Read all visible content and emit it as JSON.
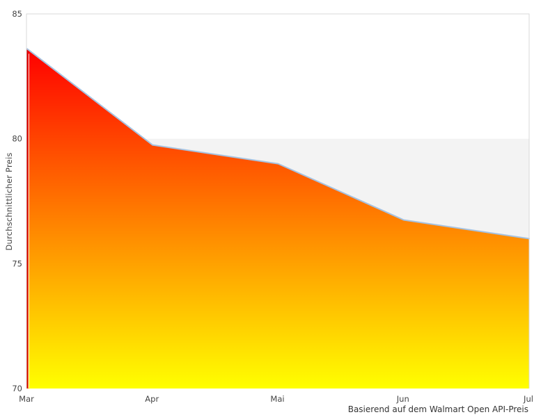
{
  "chart_data": {
    "type": "area",
    "categories": [
      "Mar",
      "Apr",
      "Mai",
      "Jun",
      "Jul"
    ],
    "values": [
      83.6,
      79.75,
      79.0,
      76.75,
      76.0
    ],
    "series_name": "Durchschnittlicher Preis",
    "title": "",
    "xlabel": "",
    "ylabel": "Durchschnittlicher Preis",
    "caption": "Basierend auf dem Walmart Open API-Preis",
    "ylim": [
      70,
      85
    ],
    "yticks": [
      85,
      80,
      75,
      70
    ],
    "legend": "none",
    "grid": "top-border-only",
    "plot_band": {
      "from": 75,
      "to": 80,
      "color": "#f3f3f3"
    },
    "colors": {
      "gradient_top": "#ff0000",
      "gradient_bottom": "#ffff00",
      "line": "#a6c2e0",
      "left_edge": "#d40000",
      "border": "#d9d9d9",
      "tick_text": "#444444",
      "caption_text": "#333333",
      "background": "#ffffff"
    }
  }
}
